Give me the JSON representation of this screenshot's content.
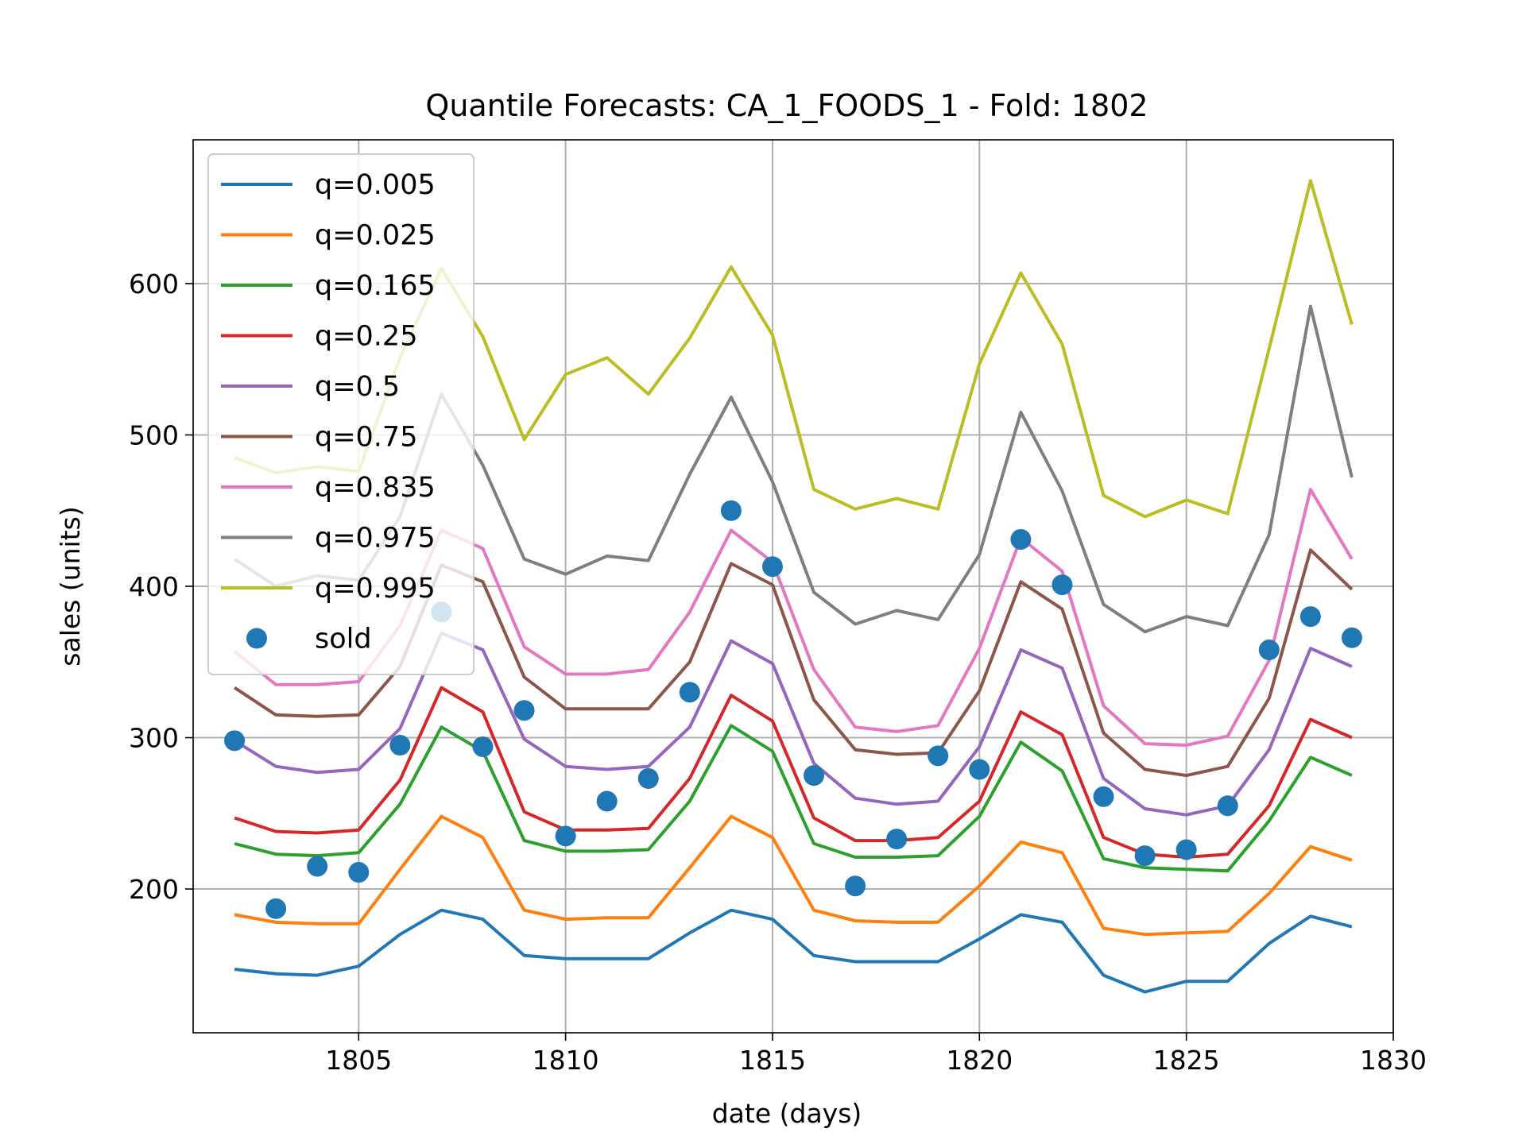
{
  "chart_data": {
    "type": "line",
    "title": "Quantile Forecasts: CA_1_FOODS_1 - Fold: 1802",
    "xlabel": "date (days)",
    "ylabel": "sales (units)",
    "xlim": [
      1801,
      1830
    ],
    "ylim": [
      105,
      695
    ],
    "xticks": [
      1805,
      1810,
      1815,
      1820,
      1825,
      1830
    ],
    "yticks": [
      200,
      300,
      400,
      500,
      600
    ],
    "grid": true,
    "legend_position": "top-left",
    "x": [
      1802,
      1803,
      1804,
      1805,
      1806,
      1807,
      1808,
      1809,
      1810,
      1811,
      1812,
      1813,
      1814,
      1815,
      1816,
      1817,
      1818,
      1819,
      1820,
      1821,
      1822,
      1823,
      1824,
      1825,
      1826,
      1827,
      1828,
      1829
    ],
    "series": [
      {
        "name": "q=0.005",
        "color": "#1f77b4",
        "values": [
          147,
          144,
          143,
          149,
          170,
          186,
          180,
          156,
          154,
          154,
          154,
          171,
          186,
          180,
          156,
          152,
          152,
          152,
          167,
          183,
          178,
          143,
          132,
          139,
          139,
          164,
          182,
          175
        ]
      },
      {
        "name": "q=0.025",
        "color": "#ff7f0e",
        "values": [
          183,
          178,
          177,
          177,
          213,
          248,
          234,
          186,
          180,
          181,
          181,
          214,
          248,
          234,
          186,
          179,
          178,
          178,
          202,
          231,
          224,
          174,
          170,
          171,
          172,
          197,
          228,
          219
        ]
      },
      {
        "name": "q=0.165",
        "color": "#2ca02c",
        "values": [
          230,
          223,
          222,
          224,
          256,
          307,
          291,
          232,
          225,
          225,
          226,
          258,
          308,
          291,
          230,
          221,
          221,
          222,
          248,
          297,
          278,
          220,
          214,
          213,
          212,
          245,
          287,
          275
        ]
      },
      {
        "name": "q=0.25",
        "color": "#d62728",
        "values": [
          247,
          238,
          237,
          239,
          272,
          333,
          317,
          251,
          239,
          239,
          240,
          273,
          328,
          311,
          247,
          232,
          232,
          234,
          258,
          317,
          302,
          234,
          223,
          221,
          223,
          255,
          312,
          300
        ]
      },
      {
        "name": "q=0.5",
        "color": "#9467bd",
        "values": [
          298,
          281,
          277,
          279,
          306,
          369,
          358,
          299,
          281,
          279,
          281,
          307,
          364,
          349,
          283,
          260,
          256,
          258,
          294,
          358,
          346,
          273,
          253,
          249,
          255,
          292,
          359,
          347
        ]
      },
      {
        "name": "q=0.75",
        "color": "#8c564b",
        "values": [
          333,
          315,
          314,
          315,
          347,
          414,
          403,
          340,
          319,
          319,
          319,
          350,
          415,
          401,
          325,
          292,
          289,
          290,
          331,
          403,
          385,
          303,
          279,
          275,
          281,
          326,
          424,
          398
        ]
      },
      {
        "name": "q=0.835",
        "color": "#e377c2",
        "values": [
          357,
          335,
          335,
          337,
          374,
          437,
          425,
          360,
          342,
          342,
          345,
          383,
          437,
          416,
          345,
          307,
          304,
          308,
          359,
          432,
          410,
          321,
          296,
          295,
          301,
          351,
          464,
          418
        ]
      },
      {
        "name": "q=0.975",
        "color": "#7f7f7f",
        "values": [
          418,
          400,
          407,
          404,
          446,
          527,
          480,
          418,
          408,
          420,
          417,
          474,
          525,
          469,
          396,
          375,
          384,
          378,
          421,
          515,
          463,
          388,
          370,
          380,
          374,
          434,
          585,
          472
        ]
      },
      {
        "name": "q=0.995",
        "color": "#bcbd22",
        "values": [
          485,
          475,
          479,
          476,
          551,
          610,
          565,
          497,
          540,
          551,
          527,
          564,
          611,
          566,
          464,
          451,
          458,
          451,
          547,
          607,
          560,
          460,
          446,
          457,
          448,
          557,
          668,
          573
        ]
      }
    ],
    "scatter": {
      "name": "sold",
      "color": "#1f77b4",
      "x": [
        1802,
        1803,
        1804,
        1805,
        1806,
        1807,
        1808,
        1809,
        1810,
        1811,
        1812,
        1813,
        1814,
        1815,
        1816,
        1817,
        1818,
        1819,
        1820,
        1821,
        1822,
        1823,
        1824,
        1825,
        1826,
        1827,
        1828,
        1829
      ],
      "values": [
        298,
        187,
        215,
        211,
        295,
        383,
        294,
        318,
        235,
        258,
        273,
        330,
        450,
        413,
        275,
        202,
        233,
        288,
        279,
        431,
        401,
        261,
        222,
        226,
        255,
        358,
        380,
        366
      ]
    }
  }
}
